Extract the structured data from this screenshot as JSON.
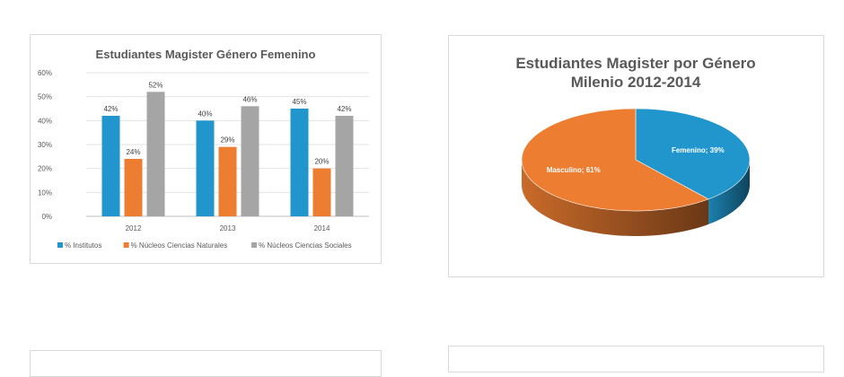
{
  "chart_data": [
    {
      "type": "bar",
      "title": "Estudiantes Magister Género Femenino",
      "categories": [
        "2012",
        "2013",
        "2014"
      ],
      "series": [
        {
          "name": "% Institutos",
          "values": [
            42,
            40,
            45
          ],
          "color": "#2196cd"
        },
        {
          "name": "% Núcleos Ciencias Naturales",
          "values": [
            24,
            29,
            20
          ],
          "color": "#ed7d31"
        },
        {
          "name": "% Núcleos Ciencias Sociales",
          "values": [
            52,
            46,
            42
          ],
          "color": "#a5a5a5"
        }
      ],
      "value_unit": "%",
      "ylim": [
        0,
        60
      ],
      "yticks": [
        "0%",
        "10%",
        "20%",
        "30%",
        "40%",
        "50%",
        "60%"
      ],
      "grid": true,
      "legend": "bottom"
    },
    {
      "type": "pie",
      "title": [
        "Estudiantes Magister por Género",
        "Milenio  2012-2014"
      ],
      "slices": [
        {
          "name": "Femenino",
          "value": 39,
          "label": "Femenino; 39%",
          "color": "#2196cd",
          "label_color": "#ffffff"
        },
        {
          "name": "Masculino",
          "value": 61,
          "label": "Masculino; 61%",
          "color": "#ed7d31",
          "label_color": "#ffffff"
        }
      ],
      "style": "3d"
    }
  ]
}
